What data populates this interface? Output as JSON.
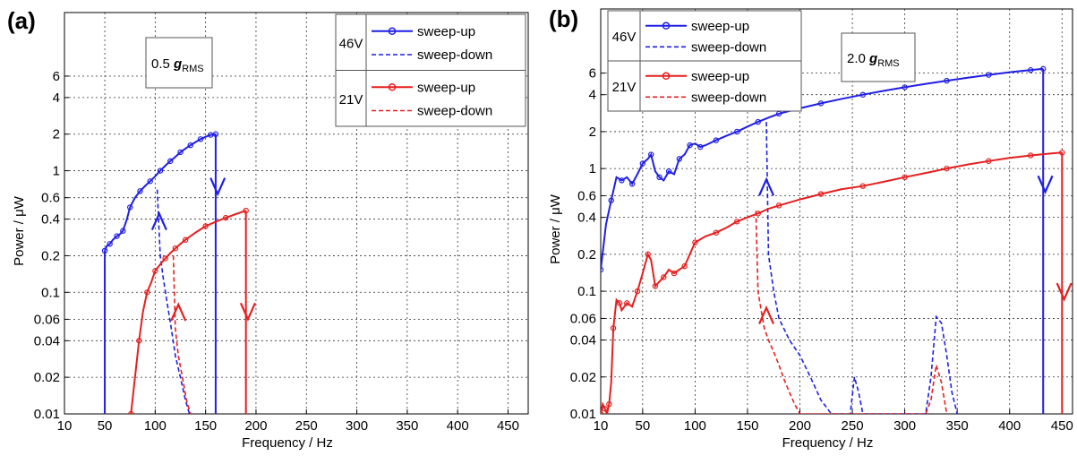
{
  "chart_data": [
    {
      "panel_label": "(a)",
      "type": "line",
      "xlabel": "Frequency / Hz",
      "ylabel": "Power / μW",
      "xlim": [
        10,
        470
      ],
      "ylim": [
        0.01,
        20
      ],
      "y_scale": "log",
      "grid": true,
      "x_ticks": [
        10,
        50,
        100,
        150,
        200,
        250,
        300,
        350,
        400,
        450
      ],
      "y_ticks": [
        0.01,
        0.02,
        0.04,
        0.06,
        0.1,
        0.2,
        0.4,
        0.6,
        1,
        2,
        4,
        6
      ],
      "y_tick_labels": [
        "0.01",
        "0.02",
        "0.04",
        "0.06",
        "0.1",
        "0.2",
        "0.4",
        "0.6",
        "1",
        "2",
        "4",
        "6"
      ],
      "annotation": {
        "main": "0.5",
        "g": "g",
        "sub": "RMS"
      },
      "legend": {
        "placement": "top-right",
        "groups": [
          {
            "voltage": "46V",
            "color": "#1f1fe6",
            "up_label": "sweep-up",
            "down_label": "sweep-down"
          },
          {
            "voltage": "21V",
            "color": "#e61f1f",
            "up_label": "sweep-up",
            "down_label": "sweep-down"
          }
        ]
      },
      "series": [
        {
          "name": "46V sweep-up",
          "color": "#1f1fe6",
          "style": "solid",
          "markers": true,
          "x": [
            50,
            52,
            55,
            58,
            62,
            65,
            68,
            72,
            75,
            80,
            85,
            90,
            95,
            100,
            105,
            110,
            115,
            120,
            125,
            130,
            135,
            140,
            145,
            150,
            155,
            160
          ],
          "y": [
            0.22,
            0.24,
            0.25,
            0.27,
            0.29,
            0.3,
            0.32,
            0.4,
            0.5,
            0.6,
            0.68,
            0.75,
            0.82,
            0.9,
            1.0,
            1.1,
            1.2,
            1.3,
            1.42,
            1.52,
            1.62,
            1.72,
            1.82,
            1.9,
            1.97,
            2.0
          ]
        },
        {
          "name": "46V sweep-down",
          "color": "#1f1fe6",
          "style": "dashed",
          "markers": false,
          "x": [
            102,
            105,
            108,
            112,
            116,
            120,
            125,
            130,
            134
          ],
          "y": [
            0.7,
            0.2,
            0.13,
            0.08,
            0.05,
            0.03,
            0.02,
            0.013,
            0.01
          ]
        },
        {
          "name": "21V sweep-up",
          "color": "#e61f1f",
          "style": "solid",
          "markers": true,
          "x": [
            76,
            80,
            84,
            88,
            92,
            96,
            100,
            105,
            110,
            115,
            120,
            125,
            130,
            140,
            150,
            160,
            170,
            180,
            190
          ],
          "y": [
            0.01,
            0.02,
            0.04,
            0.07,
            0.1,
            0.12,
            0.15,
            0.17,
            0.19,
            0.21,
            0.23,
            0.25,
            0.27,
            0.31,
            0.35,
            0.38,
            0.41,
            0.44,
            0.47
          ]
        },
        {
          "name": "21V sweep-down",
          "color": "#e61f1f",
          "style": "dashed",
          "markers": false,
          "x": [
            118,
            120,
            123,
            127,
            131,
            135
          ],
          "y": [
            0.2,
            0.05,
            0.03,
            0.02,
            0.013,
            0.01
          ]
        }
      ],
      "jumps": [
        {
          "color": "#1f1fe6",
          "x": 160,
          "y_from": 2.0,
          "y_to": 0.01
        },
        {
          "color": "#e61f1f",
          "x": 190,
          "y_from": 0.47,
          "y_to": 0.01
        },
        {
          "color": "#1f1fe6",
          "x": 50,
          "y_from": 0.01,
          "y_to": 0.22
        }
      ],
      "arrows": [
        {
          "color": "#1f1fe6",
          "dir": "down",
          "x": 162,
          "y": 0.75
        },
        {
          "color": "#1f1fe6",
          "dir": "up",
          "x": 104,
          "y": 0.38
        },
        {
          "color": "#e61f1f",
          "dir": "up",
          "x": 123,
          "y": 0.068
        },
        {
          "color": "#e61f1f",
          "dir": "down",
          "x": 192,
          "y": 0.07
        }
      ]
    },
    {
      "panel_label": "(b)",
      "type": "line",
      "xlabel": "Frequency / Hz",
      "ylabel": "Power / μW",
      "xlim": [
        10,
        460
      ],
      "ylim": [
        0.01,
        20
      ],
      "y_scale": "log",
      "grid": true,
      "x_ticks": [
        10,
        50,
        100,
        150,
        200,
        250,
        300,
        350,
        400,
        450
      ],
      "y_ticks": [
        0.01,
        0.02,
        0.04,
        0.06,
        0.1,
        0.2,
        0.4,
        0.6,
        1,
        2,
        4,
        6
      ],
      "y_tick_labels": [
        "0.01",
        "0.02",
        "0.04",
        "0.06",
        "0.1",
        "0.2",
        "0.4",
        "0.6",
        "1",
        "2",
        "4",
        "6"
      ],
      "annotation": {
        "main": "2.0",
        "g": "g",
        "sub": "RMS"
      },
      "legend": {
        "placement": "top-left",
        "groups": [
          {
            "voltage": "46V",
            "color": "#1f1fe6",
            "up_label": "sweep-up",
            "down_label": "sweep-down"
          },
          {
            "voltage": "21V",
            "color": "#e61f1f",
            "up_label": "sweep-up",
            "down_label": "sweep-down"
          }
        ]
      },
      "series": [
        {
          "name": "46V sweep-up",
          "color": "#1f1fe6",
          "style": "solid",
          "markers": true,
          "x": [
            10,
            15,
            20,
            25,
            30,
            35,
            40,
            45,
            50,
            55,
            58,
            62,
            66,
            70,
            75,
            80,
            85,
            90,
            95,
            100,
            105,
            110,
            120,
            130,
            140,
            150,
            160,
            170,
            180,
            200,
            220,
            240,
            260,
            280,
            300,
            320,
            340,
            360,
            380,
            400,
            420,
            432
          ],
          "y": [
            0.15,
            0.35,
            0.55,
            0.85,
            0.8,
            0.85,
            0.75,
            0.9,
            1.1,
            1.2,
            1.3,
            0.95,
            0.85,
            0.8,
            0.95,
            0.9,
            1.2,
            1.3,
            1.55,
            1.6,
            1.5,
            1.55,
            1.7,
            1.85,
            2.0,
            2.2,
            2.4,
            2.6,
            2.8,
            3.1,
            3.4,
            3.7,
            4.0,
            4.3,
            4.6,
            4.9,
            5.2,
            5.5,
            5.8,
            6.1,
            6.35,
            6.5
          ]
        },
        {
          "name": "46V sweep-down",
          "color": "#1f1fe6",
          "style": "dashed",
          "markers": false,
          "x": [
            168,
            170,
            175,
            180,
            190,
            200,
            210,
            220,
            230,
            240,
            248,
            252,
            256,
            260,
            266,
            270,
            300,
            320,
            325,
            330,
            335,
            340,
            345,
            350
          ],
          "y": [
            2.4,
            0.2,
            0.1,
            0.06,
            0.04,
            0.03,
            0.02,
            0.013,
            0.01,
            0.01,
            0.01,
            0.02,
            0.015,
            0.01,
            0.01,
            0.01,
            0.01,
            0.01,
            0.02,
            0.062,
            0.055,
            0.03,
            0.015,
            0.01
          ]
        },
        {
          "name": "21V sweep-up",
          "color": "#e61f1f",
          "style": "solid",
          "markers": true,
          "x": [
            10,
            12,
            14,
            16,
            18,
            20,
            22,
            25,
            28,
            30,
            35,
            40,
            45,
            50,
            55,
            58,
            62,
            66,
            70,
            75,
            80,
            85,
            90,
            95,
            100,
            110,
            120,
            130,
            140,
            150,
            160,
            170,
            180,
            200,
            220,
            240,
            260,
            280,
            300,
            320,
            340,
            360,
            380,
            400,
            420,
            440,
            450
          ],
          "y": [
            0.01,
            0.012,
            0.011,
            0.01,
            0.012,
            0.018,
            0.05,
            0.085,
            0.08,
            0.07,
            0.08,
            0.075,
            0.1,
            0.14,
            0.2,
            0.18,
            0.11,
            0.12,
            0.13,
            0.15,
            0.14,
            0.15,
            0.16,
            0.2,
            0.25,
            0.28,
            0.3,
            0.33,
            0.37,
            0.4,
            0.43,
            0.47,
            0.5,
            0.56,
            0.62,
            0.68,
            0.72,
            0.78,
            0.85,
            0.92,
            1.0,
            1.08,
            1.15,
            1.22,
            1.28,
            1.33,
            1.35
          ]
        },
        {
          "name": "21V sweep-down",
          "color": "#e61f1f",
          "style": "dashed",
          "markers": false,
          "x": [
            158,
            160,
            163,
            166,
            170,
            175,
            180,
            185,
            190,
            195,
            200,
            320,
            325,
            330,
            335,
            340
          ],
          "y": [
            0.45,
            0.1,
            0.07,
            0.05,
            0.04,
            0.032,
            0.025,
            0.019,
            0.015,
            0.012,
            0.01,
            0.01,
            0.013,
            0.025,
            0.018,
            0.01
          ]
        }
      ],
      "jumps": [
        {
          "color": "#1f1fe6",
          "x": 432,
          "y_from": 6.5,
          "y_to": 0.01
        },
        {
          "color": "#e61f1f",
          "x": 450,
          "y_from": 1.35,
          "y_to": 0.01
        }
      ],
      "arrows": [
        {
          "color": "#1f1fe6",
          "dir": "up",
          "x": 168,
          "y": 0.7
        },
        {
          "color": "#1f1fe6",
          "dir": "down",
          "x": 434,
          "y": 0.75
        },
        {
          "color": "#e61f1f",
          "dir": "up",
          "x": 168,
          "y": 0.063
        },
        {
          "color": "#e61f1f",
          "dir": "down",
          "x": 452,
          "y": 0.1
        }
      ]
    }
  ]
}
